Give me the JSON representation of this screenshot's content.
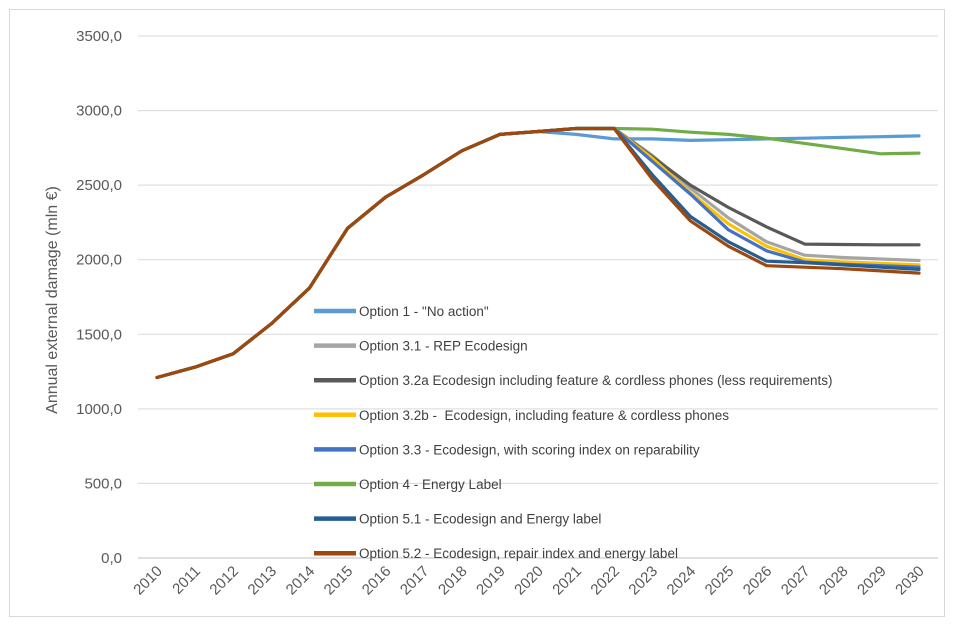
{
  "chart_data": {
    "type": "line",
    "title": "",
    "xlabel": "",
    "ylabel": "Annual external damage (mln €)",
    "ylim": [
      0,
      3500
    ],
    "yticks": [
      "0,0",
      "500,0",
      "1000,0",
      "1500,0",
      "2000,0",
      "2500,0",
      "3000,0",
      "3500,0"
    ],
    "grid": true,
    "legend_position": "inside-lower-middle",
    "categories": [
      "2010",
      "2011",
      "2012",
      "2013",
      "2014",
      "2015",
      "2016",
      "2017",
      "2018",
      "2019",
      "2020",
      "2021",
      "2022",
      "2023",
      "2024",
      "2025",
      "2026",
      "2027",
      "2028",
      "2029",
      "2030"
    ],
    "series": [
      {
        "name": "Option 1 - \"No action\"",
        "color": "#5b9bd5",
        "values": [
          1210,
          1280,
          1370,
          1570,
          1810,
          2210,
          2420,
          2570,
          2730,
          2840,
          2860,
          2840,
          2810,
          2810,
          2800,
          2805,
          2810,
          2815,
          2820,
          2825,
          2830
        ]
      },
      {
        "name": "Option 3.1 - REP Ecodesign",
        "color": "#a5a5a5",
        "values": [
          1210,
          1280,
          1370,
          1570,
          1810,
          2210,
          2420,
          2570,
          2730,
          2840,
          2860,
          2880,
          2880,
          2700,
          2480,
          2280,
          2120,
          2030,
          2015,
          2005,
          1995
        ]
      },
      {
        "name": "Option 3.2a Ecodesign including feature & cordless phones (less requirements)",
        "color": "#595959",
        "values": [
          1210,
          1280,
          1370,
          1570,
          1810,
          2210,
          2420,
          2570,
          2730,
          2840,
          2860,
          2880,
          2880,
          2690,
          2500,
          2350,
          2220,
          2105,
          2102,
          2100,
          2100
        ]
      },
      {
        "name": "Option 3.2b -  Ecodesign, including feature & cordless phones",
        "color": "#ffc000",
        "values": [
          1210,
          1280,
          1370,
          1570,
          1810,
          2210,
          2420,
          2570,
          2730,
          2840,
          2860,
          2880,
          2880,
          2680,
          2450,
          2240,
          2090,
          2000,
          1985,
          1975,
          1965
        ]
      },
      {
        "name": "Option 3.3 - Ecodesign, with scoring index on reparability",
        "color": "#4472c4",
        "values": [
          1210,
          1280,
          1370,
          1570,
          1810,
          2210,
          2420,
          2570,
          2730,
          2840,
          2860,
          2880,
          2880,
          2660,
          2440,
          2200,
          2060,
          1985,
          1970,
          1960,
          1950
        ]
      },
      {
        "name": "Option 4 - Energy Label",
        "color": "#70ad47",
        "values": [
          1210,
          1280,
          1370,
          1570,
          1810,
          2210,
          2420,
          2570,
          2730,
          2840,
          2860,
          2880,
          2880,
          2875,
          2855,
          2840,
          2815,
          2780,
          2745,
          2710,
          2715
        ]
      },
      {
        "name": "Option 5.1 - Ecodesign and Energy label",
        "color": "#255e91",
        "values": [
          1210,
          1280,
          1370,
          1570,
          1810,
          2210,
          2420,
          2570,
          2730,
          2840,
          2860,
          2880,
          2880,
          2570,
          2290,
          2120,
          1990,
          1980,
          1965,
          1950,
          1935
        ]
      },
      {
        "name": "Option 5.2 - Ecodesign, repair index and energy label",
        "color": "#9e480e",
        "values": [
          1210,
          1280,
          1370,
          1570,
          1810,
          2210,
          2420,
          2570,
          2730,
          2840,
          2860,
          2880,
          2880,
          2540,
          2260,
          2090,
          1960,
          1950,
          1940,
          1925,
          1910
        ]
      }
    ]
  }
}
